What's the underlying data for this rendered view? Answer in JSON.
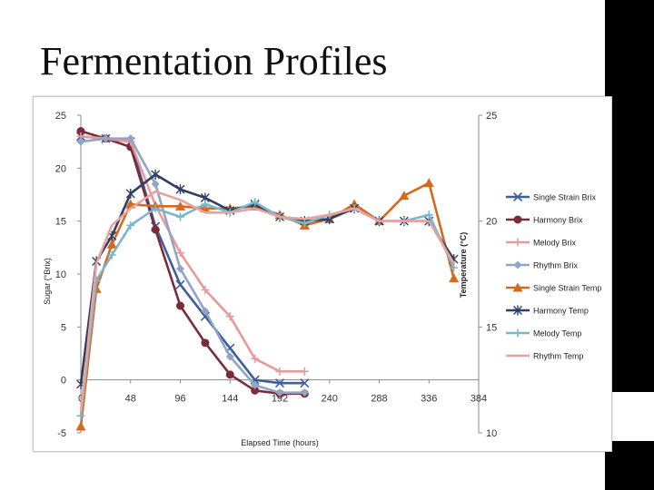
{
  "slide": {
    "title": "Fermentation Profiles"
  },
  "chart_data": {
    "type": "line",
    "xlabel": "Elapsed Time (hours)",
    "ylabel": "Sugar (°Brix)",
    "y2label": "Temperature (°C)",
    "x_ticks": [
      "0",
      "48",
      "96",
      "144",
      "192",
      "240",
      "288",
      "336",
      "384"
    ],
    "xlim": [
      0,
      384
    ],
    "ylim": [
      -5,
      25
    ],
    "y_ticks": [
      "-5",
      "0",
      "5",
      "10",
      "15",
      "20",
      "25"
    ],
    "y2lim": [
      10,
      25
    ],
    "y2_ticks": [
      "10",
      "15",
      "20",
      "25"
    ],
    "legend_position": "right",
    "series": [
      {
        "name": "Single Strain Brix",
        "axis": "left",
        "marker": "x-mark",
        "color": "#3d5f9e",
        "x": [
          0,
          24,
          48,
          72,
          96,
          120,
          144,
          168,
          192,
          216
        ],
        "y": [
          23,
          22.8,
          22.5,
          14.5,
          9,
          6,
          3,
          0,
          -0.3,
          -0.3
        ]
      },
      {
        "name": "Harmony Brix",
        "axis": "left",
        "marker": "circle",
        "color": "#7b2c3a",
        "x": [
          0,
          24,
          48,
          72,
          96,
          120,
          144,
          168,
          192,
          216
        ],
        "y": [
          23.5,
          22.8,
          22,
          14.2,
          7,
          3.5,
          0.5,
          -1,
          -1.3,
          -1.3
        ]
      },
      {
        "name": "Melody Brix",
        "axis": "left",
        "marker": "plus",
        "color": "#e8999a",
        "x": [
          0,
          24,
          48,
          72,
          96,
          120,
          144,
          168,
          192,
          216
        ],
        "y": [
          23,
          22.8,
          22.5,
          16.5,
          12,
          8.5,
          6,
          2,
          0.8,
          0.8
        ]
      },
      {
        "name": "Rhythm Brix",
        "axis": "left",
        "marker": "diamond",
        "color": "#8fa5c3",
        "x": [
          0,
          24,
          48,
          72,
          96,
          120,
          144,
          168,
          192,
          216
        ],
        "y": [
          22.5,
          22.8,
          22.8,
          18.5,
          10.5,
          6.5,
          2.2,
          -0.5,
          -1.2,
          -1.2
        ]
      },
      {
        "name": "Single Strain Temp",
        "axis": "right",
        "marker": "triangle",
        "color": "#d46a1e",
        "x": [
          0,
          15,
          30,
          48,
          72,
          96,
          120,
          144,
          168,
          192,
          216,
          240,
          264,
          288,
          312,
          336,
          360
        ],
        "y": [
          10.3,
          16.8,
          18.9,
          20.8,
          20.7,
          20.7,
          20.6,
          20.6,
          20.7,
          20.3,
          19.8,
          20.1,
          20.8,
          20,
          21.2,
          21.8,
          17.3
        ]
      },
      {
        "name": "Harmony Temp",
        "axis": "right",
        "marker": "star",
        "color": "#2f3e63",
        "x": [
          0,
          15,
          30,
          48,
          72,
          96,
          120,
          144,
          168,
          192,
          216,
          240,
          264,
          288,
          312,
          336,
          360
        ],
        "y": [
          12.3,
          18.1,
          19.3,
          21.3,
          22.2,
          21.5,
          21.1,
          20.5,
          20.8,
          20.2,
          20,
          20.1,
          20.6,
          20,
          20,
          20,
          18.2
        ]
      },
      {
        "name": "Melody Temp",
        "axis": "right",
        "marker": "plus",
        "color": "#7ab6cc",
        "x": [
          0,
          15,
          30,
          48,
          72,
          96,
          120,
          144,
          168,
          192,
          216,
          240,
          264,
          288,
          312,
          336,
          360
        ],
        "y": [
          10.8,
          17.2,
          18.4,
          19.8,
          20.6,
          20.2,
          20.8,
          20.4,
          20.9,
          20.2,
          19.9,
          20.3,
          20.6,
          20,
          20,
          20.3,
          17.8
        ]
      },
      {
        "name": "Rhythm Temp",
        "axis": "right",
        "marker": "none",
        "color": "#e8a39b",
        "x": [
          0,
          15,
          30,
          48,
          72,
          96,
          120,
          144,
          168,
          192,
          216,
          240,
          264,
          288,
          312,
          336,
          360
        ],
        "y": [
          11,
          18,
          19.8,
          20.6,
          21.4,
          21,
          20.4,
          20.4,
          20.6,
          20.2,
          20.1,
          20.3,
          20.6,
          20,
          20,
          20,
          18
        ]
      }
    ]
  }
}
